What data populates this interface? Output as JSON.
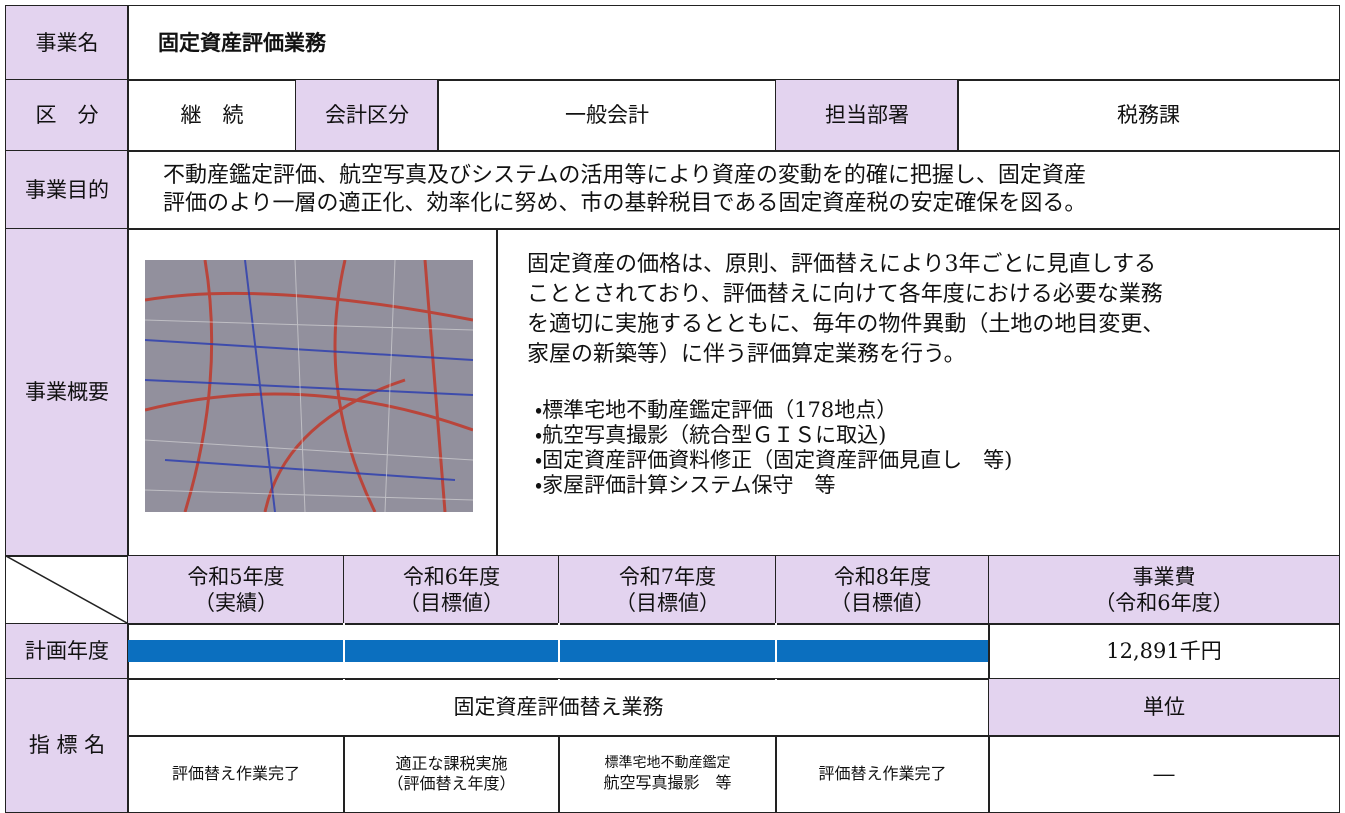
{
  "header": {
    "label": "事業名",
    "title": "固定資産評価業務"
  },
  "classification": {
    "label": "区　分",
    "value": "継　続",
    "account_label": "会計区分",
    "account": "一般会計",
    "dept_label": "担当部署",
    "dept": "税務課"
  },
  "purpose": {
    "label": "事業目的",
    "lines": [
      "不動産鑑定評価、航空写真及びシステムの活用等により資産の変動を的確に把握し、固定資産",
      "評価のより一層の適正化、効率化に努め、市の基幹税目である固定資産税の安定確保を図る。"
    ]
  },
  "overview": {
    "label": "事業概要",
    "description": [
      "固定資産の価格は、原則、評価替えにより3年ごとに見直しする",
      "こととされており、評価替えに向けて各年度における必要な業務",
      "を適切に実施するとともに、毎年の物件異動（土地の地目変更、",
      "家屋の新築等）に伴う評価算定業務を行う。"
    ],
    "items": [
      "・標準宅地不動産鑑定評価（178地点）",
      "・航空写真撮影（統合型ＧＩＳに取込)",
      "・固定資産評価資料修正（固定資産評価見直し　等)",
      "・家屋評価計算システム保守　等"
    ]
  },
  "plan": {
    "columns": [
      {
        "year": "令和5年度",
        "note": "（実績）"
      },
      {
        "year": "令和6年度",
        "note": "（目標値）"
      },
      {
        "year": "令和7年度",
        "note": "（目標値）"
      },
      {
        "year": "令和8年度",
        "note": "（目標値）"
      }
    ],
    "cost_header": {
      "title": "事業費",
      "note": "（令和6年度）"
    },
    "label": "計画年度",
    "cost": "12,891千円"
  },
  "indicator": {
    "label": "指 標 名",
    "name": "固定資産評価替え業務",
    "unit_label": "単位",
    "targets": [
      [
        "評価替え作業完了"
      ],
      [
        "適正な課税実施",
        "（評価替え年度）"
      ],
      [
        "標準宅地不動産鑑定",
        "航空写真撮影　等"
      ],
      [
        "評価替え作業完了"
      ]
    ],
    "unit": "―"
  }
}
